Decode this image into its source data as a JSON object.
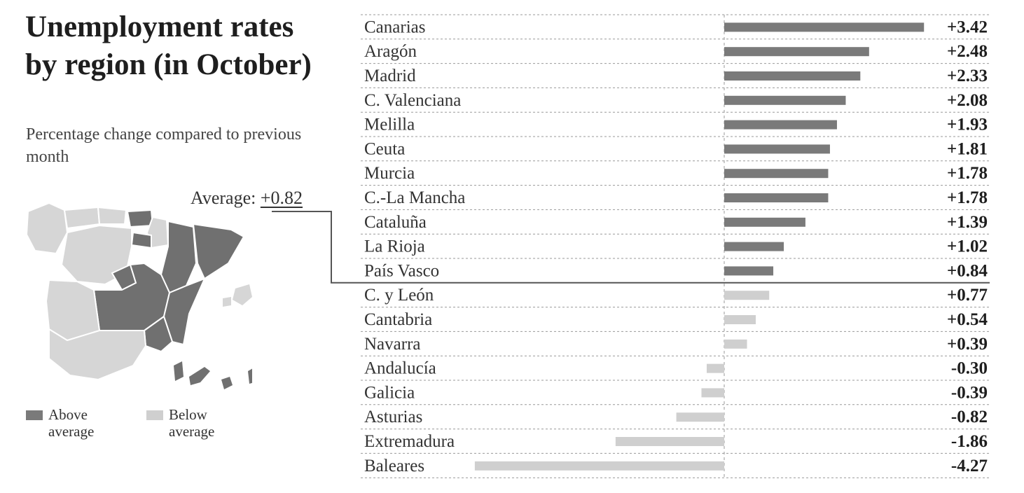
{
  "title": "Unemployment rates by region (in October)",
  "subtitle": "Percentage change compared to previous month",
  "average": {
    "prefix": "Average:",
    "value": "+0.82"
  },
  "legend": {
    "above": "Above average",
    "below": "Below average"
  },
  "colors": {
    "above": "#7a7a7a",
    "below": "#cfcfcf",
    "map_above": "#707070",
    "map_below": "#d6d6d6",
    "grid": "#999999",
    "avg_line": "#555555"
  },
  "chart_data": {
    "type": "bar",
    "orientation": "horizontal",
    "average": 0.82,
    "categories": [
      "Canarias",
      "Aragón",
      "Madrid",
      "C. Valenciana",
      "Melilla",
      "Ceuta",
      "Murcia",
      "C.-La Mancha",
      "Cataluña",
      "La Rioja",
      "País Vasco",
      "C. y León",
      "Cantabria",
      "Navarra",
      "Andalucía",
      "Galicia",
      "Asturias",
      "Extremadura",
      "Baleares"
    ],
    "values": [
      3.42,
      2.48,
      2.33,
      2.08,
      1.93,
      1.81,
      1.78,
      1.78,
      1.39,
      1.02,
      0.84,
      0.77,
      0.54,
      0.39,
      -0.3,
      -0.39,
      -0.82,
      -1.86,
      -4.27
    ],
    "value_labels": [
      "+3.42",
      "+2.48",
      "+2.33",
      "+2.08",
      "+1.93",
      "+1.81",
      "+1.78",
      "+1.78",
      "+1.39",
      "+1.02",
      "+0.84",
      "+0.77",
      "+0.54",
      "+0.39",
      "-0.30",
      "-0.39",
      "-0.82",
      "-1.86",
      "-4.27"
    ],
    "xlim": [
      -4.27,
      3.42
    ]
  }
}
